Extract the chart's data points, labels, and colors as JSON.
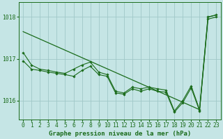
{
  "title": "Graphe pression niveau de la mer (hPa)",
  "background_color": "#c5e5e5",
  "grid_color": "#a0c8c8",
  "line_color": "#1a6b1a",
  "marker_color": "#1a6b1a",
  "xlim": [
    -0.5,
    23.5
  ],
  "ylim": [
    1015.55,
    1018.35
  ],
  "yticks": [
    1016,
    1017,
    1018
  ],
  "xticks": [
    0,
    1,
    2,
    3,
    4,
    5,
    6,
    7,
    8,
    9,
    10,
    11,
    12,
    13,
    14,
    15,
    16,
    17,
    18,
    19,
    20,
    21,
    22,
    23
  ],
  "series": [
    {
      "x": [
        0,
        21,
        22,
        23
      ],
      "y": [
        1017.65,
        1015.78,
        1018.0,
        1018.05
      ],
      "has_markers": false
    },
    {
      "x": [
        0,
        1,
        2,
        3,
        4,
        5,
        6,
        7,
        8,
        9,
        10,
        11,
        12,
        13,
        14,
        15,
        16,
        17,
        18,
        19,
        20,
        21,
        22,
        23
      ],
      "y": [
        1017.15,
        1016.85,
        1016.75,
        1016.72,
        1016.68,
        1016.65,
        1016.75,
        1016.85,
        1016.92,
        1016.68,
        1016.62,
        1016.22,
        1016.18,
        1016.32,
        1016.28,
        1016.32,
        1016.28,
        1016.25,
        1015.75,
        1016.0,
        1016.35,
        1015.78,
        1018.0,
        1018.05
      ],
      "has_markers": true
    },
    {
      "x": [
        0,
        1,
        2,
        3,
        4,
        5,
        6,
        7,
        8,
        9,
        10,
        11,
        12,
        13,
        14,
        15,
        16,
        17,
        18,
        19,
        20,
        21,
        22,
        23
      ],
      "y": [
        1016.95,
        1016.75,
        1016.72,
        1016.68,
        1016.65,
        1016.62,
        1016.58,
        1016.72,
        1016.82,
        1016.62,
        1016.58,
        1016.18,
        1016.15,
        1016.28,
        1016.22,
        1016.28,
        1016.22,
        1016.2,
        1015.72,
        1015.95,
        1016.3,
        1015.75,
        1017.95,
        1018.0
      ],
      "has_markers": true
    }
  ],
  "label_fontsize": 6.5,
  "tick_fontsize": 5.8,
  "label_font": "monospace",
  "xlabel_fontweight": "bold"
}
